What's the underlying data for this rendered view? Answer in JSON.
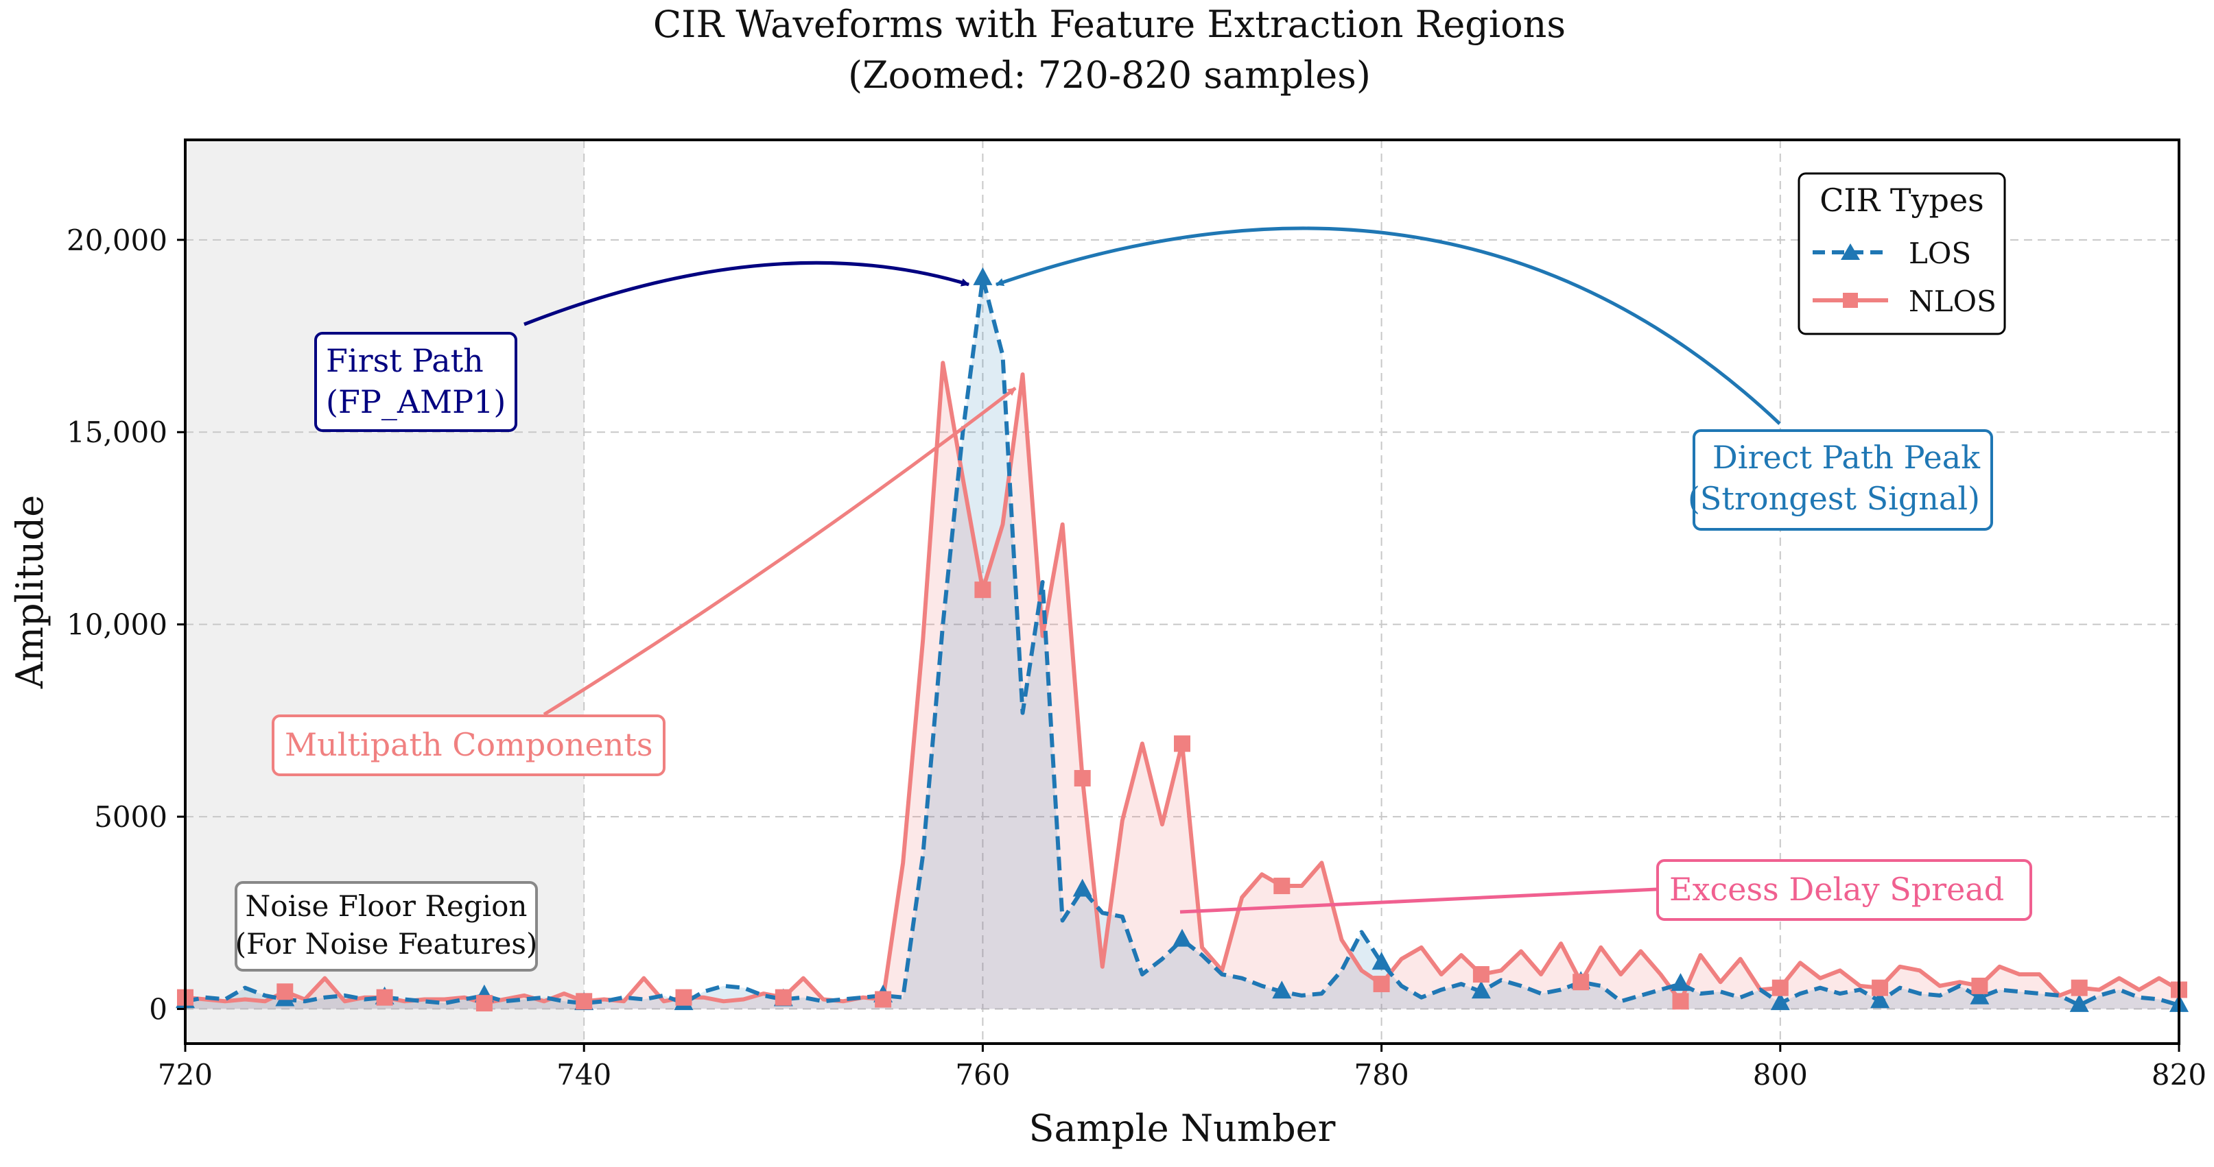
{
  "chart_data": {
    "type": "line",
    "title": "CIR Waveforms with Feature Extraction Regions",
    "subtitle": "(Zoomed: 720-820 samples)",
    "xlabel": "Sample Number",
    "ylabel": "Amplitude",
    "xlim": [
      720,
      820
    ],
    "ylim": [
      -900,
      22600
    ],
    "grid": true,
    "x_ticks": [
      720,
      740,
      760,
      780,
      800,
      820
    ],
    "y_ticks": [
      0,
      5000,
      10000,
      15000,
      20000
    ],
    "x_tick_labels": [
      "720",
      "740",
      "760",
      "780",
      "800",
      "820"
    ],
    "y_tick_labels": [
      "0",
      "5000",
      "10,000",
      "15,000",
      "20,000"
    ],
    "legend": {
      "title": "CIR Types",
      "position": "top-right",
      "entries": [
        "LOS",
        "NLOS"
      ]
    },
    "noise_region": {
      "x_start": 720,
      "x_end": 740
    },
    "series": [
      {
        "name": "LOS",
        "color": "#1f77b4",
        "style": "dashed",
        "marker": "triangle",
        "marker_every": 5,
        "x": [
          720,
          721,
          722,
          723,
          724,
          725,
          726,
          727,
          728,
          729,
          730,
          731,
          732,
          733,
          734,
          735,
          736,
          737,
          738,
          739,
          740,
          741,
          742,
          743,
          744,
          745,
          746,
          747,
          748,
          749,
          750,
          751,
          752,
          753,
          754,
          755,
          756,
          757,
          758,
          759,
          760,
          761,
          762,
          763,
          764,
          765,
          766,
          767,
          768,
          769,
          770,
          771,
          772,
          773,
          774,
          775,
          776,
          777,
          778,
          779,
          780,
          781,
          782,
          783,
          784,
          785,
          786,
          787,
          788,
          789,
          790,
          791,
          792,
          793,
          794,
          795,
          796,
          797,
          798,
          799,
          800,
          801,
          802,
          803,
          804,
          805,
          806,
          807,
          808,
          809,
          810,
          811,
          812,
          813,
          814,
          815,
          816,
          817,
          818,
          819,
          820
        ],
        "values": [
          200,
          300,
          250,
          550,
          350,
          250,
          200,
          300,
          350,
          250,
          300,
          250,
          200,
          150,
          250,
          350,
          200,
          250,
          300,
          200,
          150,
          200,
          300,
          250,
          350,
          150,
          450,
          600,
          550,
          350,
          250,
          300,
          200,
          250,
          300,
          350,
          300,
          4000,
          10000,
          15000,
          19000,
          17000,
          7700,
          11100,
          2300,
          3100,
          2500,
          2400,
          900,
          1300,
          1800,
          1400,
          900,
          800,
          600,
          450,
          350,
          400,
          1000,
          2000,
          1200,
          600,
          300,
          500,
          650,
          450,
          750,
          600,
          400,
          500,
          700,
          600,
          200,
          350,
          500,
          650,
          400,
          450,
          300,
          500,
          150,
          400,
          550,
          400,
          500,
          200,
          550,
          400,
          350,
          600,
          300,
          500,
          450,
          400,
          350,
          100,
          350,
          500,
          300,
          250,
          100
        ]
      },
      {
        "name": "NLOS",
        "color": "#f08080",
        "style": "solid",
        "marker": "square",
        "marker_every": 5,
        "x": [
          720,
          721,
          722,
          723,
          724,
          725,
          726,
          727,
          728,
          729,
          730,
          731,
          732,
          733,
          734,
          735,
          736,
          737,
          738,
          739,
          740,
          741,
          742,
          743,
          744,
          745,
          746,
          747,
          748,
          749,
          750,
          751,
          752,
          753,
          754,
          755,
          756,
          757,
          758,
          759,
          760,
          761,
          762,
          763,
          764,
          765,
          766,
          767,
          768,
          769,
          770,
          771,
          772,
          773,
          774,
          775,
          776,
          777,
          778,
          779,
          780,
          781,
          782,
          783,
          784,
          785,
          786,
          787,
          788,
          789,
          790,
          791,
          792,
          793,
          794,
          795,
          796,
          797,
          798,
          799,
          800,
          801,
          802,
          803,
          804,
          805,
          806,
          807,
          808,
          809,
          810,
          811,
          812,
          813,
          814,
          815,
          816,
          817,
          818,
          819,
          820
        ],
        "values": [
          300,
          250,
          200,
          250,
          200,
          450,
          250,
          800,
          200,
          300,
          300,
          200,
          250,
          250,
          300,
          150,
          250,
          350,
          200,
          400,
          200,
          250,
          200,
          800,
          200,
          300,
          300,
          200,
          250,
          400,
          300,
          800,
          250,
          200,
          300,
          250,
          3800,
          9600,
          16800,
          13800,
          10900,
          12600,
          16500,
          9700,
          12600,
          6000,
          1100,
          4900,
          6900,
          4800,
          6900,
          1600,
          1000,
          2900,
          3500,
          3200,
          3200,
          3800,
          1800,
          1000,
          650,
          1300,
          1600,
          900,
          1400,
          900,
          1000,
          1500,
          900,
          1700,
          700,
          1600,
          900,
          1500,
          900,
          200,
          1400,
          700,
          1300,
          500,
          550,
          1200,
          800,
          1000,
          600,
          550,
          1100,
          1000,
          600,
          700,
          600,
          1100,
          900,
          900,
          350,
          550,
          500,
          800,
          500,
          800,
          500
        ]
      }
    ],
    "annotations": {
      "first_path": {
        "line1": "First Path",
        "line2": "(FP_AMP1)",
        "target_x": 760,
        "target_y": 19000,
        "color": "#000080"
      },
      "direct_path": {
        "line1": "Direct Path Peak",
        "line2": "(Strongest Signal)",
        "target_x": 760,
        "target_y": 19000,
        "color": "#1f77b4"
      },
      "multipath": {
        "text": "Multipath Components",
        "target_x": 761.5,
        "target_y": 16400,
        "color": "#f08080"
      },
      "excess_delay": {
        "text": "Excess Delay Spread",
        "target_x": 770,
        "target_y": 2500,
        "color": "#f06090"
      },
      "noise_floor": {
        "line1": "Noise Floor Region",
        "line2": "(For Noise Features)",
        "color": "#111111"
      }
    }
  }
}
